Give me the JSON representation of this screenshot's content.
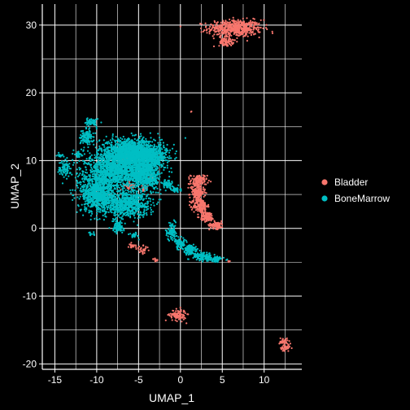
{
  "chart_data": {
    "type": "scatter",
    "xlabel": "UMAP_1",
    "ylabel": "UMAP_2",
    "xlim": [
      -16.5,
      14.5
    ],
    "ylim": [
      -20.8,
      33.1
    ],
    "x_ticks": [
      -15,
      -10,
      -5,
      0,
      5,
      10
    ],
    "y_ticks": [
      -20,
      -10,
      0,
      10,
      20,
      30
    ],
    "grid_x": [
      -15,
      -12.5,
      -10,
      -7.5,
      -5,
      -2.5,
      0,
      2.5,
      5,
      7.5,
      10,
      12.5
    ],
    "grid_y": [
      -20,
      -15,
      -10,
      -5,
      0,
      5,
      10,
      15,
      20,
      25,
      30
    ],
    "grid": true,
    "legend_position": "right",
    "background": "#000000",
    "series": [
      {
        "name": "Bladder",
        "color": "#F8766D",
        "clusters": [
          {
            "cx": 6.5,
            "cy": 29.5,
            "sx": 2.3,
            "sy": 0.9,
            "n": 520
          },
          {
            "cx": 5.5,
            "cy": 27.6,
            "sx": 0.6,
            "sy": 0.5,
            "n": 80
          },
          {
            "cx": 2.2,
            "cy": 7.0,
            "sx": 0.7,
            "sy": 0.7,
            "n": 120
          },
          {
            "cx": 2.0,
            "cy": 5.3,
            "sx": 0.6,
            "sy": 1.0,
            "n": 160
          },
          {
            "cx": 2.4,
            "cy": 3.3,
            "sx": 0.6,
            "sy": 0.8,
            "n": 140
          },
          {
            "cx": 3.2,
            "cy": 1.7,
            "sx": 0.6,
            "sy": 0.5,
            "n": 110
          },
          {
            "cx": 4.3,
            "cy": 0.5,
            "sx": 0.6,
            "sy": 0.4,
            "n": 90
          },
          {
            "cx": -6.5,
            "cy": 10.5,
            "sx": 0.4,
            "sy": 0.5,
            "n": 40
          },
          {
            "cx": -6.0,
            "cy": 6.3,
            "sx": 0.5,
            "sy": 0.4,
            "n": 40
          },
          {
            "cx": -4.3,
            "cy": 6.0,
            "sx": 0.3,
            "sy": 0.3,
            "n": 25
          },
          {
            "cx": -3.5,
            "cy": 7.5,
            "sx": 0.3,
            "sy": 0.3,
            "n": 12
          },
          {
            "cx": -5.8,
            "cy": -2.5,
            "sx": 0.3,
            "sy": 0.3,
            "n": 20
          },
          {
            "cx": -4.5,
            "cy": -3.2,
            "sx": 0.5,
            "sy": 0.4,
            "n": 30
          },
          {
            "cx": -3.0,
            "cy": -4.6,
            "sx": 0.3,
            "sy": 0.2,
            "n": 12
          },
          {
            "cx": 1.3,
            "cy": 17.2,
            "sx": 0.05,
            "sy": 0.05,
            "n": 2
          },
          {
            "cx": 5.8,
            "cy": -4.8,
            "sx": 0.1,
            "sy": 0.1,
            "n": 4
          },
          {
            "cx": -0.3,
            "cy": -12.8,
            "sx": 0.7,
            "sy": 0.6,
            "n": 110
          },
          {
            "cx": 12.3,
            "cy": -16.6,
            "sx": 0.35,
            "sy": 0.4,
            "n": 30
          },
          {
            "cx": 12.6,
            "cy": -17.7,
            "sx": 0.5,
            "sy": 0.4,
            "n": 40
          }
        ]
      },
      {
        "name": "BoneMarrow",
        "color": "#00BFC4",
        "clusters": [
          {
            "cx": -6.0,
            "cy": 11.2,
            "sx": 2.6,
            "sy": 1.4,
            "n": 1400
          },
          {
            "cx": -7.5,
            "cy": 8.5,
            "sx": 2.6,
            "sy": 1.8,
            "n": 1300
          },
          {
            "cx": -9.8,
            "cy": 5.2,
            "sx": 1.5,
            "sy": 2.0,
            "n": 800
          },
          {
            "cx": -6.5,
            "cy": 3.6,
            "sx": 2.0,
            "sy": 1.3,
            "n": 700
          },
          {
            "cx": -4.0,
            "cy": 7.8,
            "sx": 1.2,
            "sy": 1.6,
            "n": 500
          },
          {
            "cx": -3.5,
            "cy": 10.5,
            "sx": 1.3,
            "sy": 1.1,
            "n": 400
          },
          {
            "cx": -11.2,
            "cy": 13.5,
            "sx": 0.6,
            "sy": 0.9,
            "n": 120
          },
          {
            "cx": -10.6,
            "cy": 15.6,
            "sx": 0.5,
            "sy": 0.4,
            "n": 60
          },
          {
            "cx": -13.8,
            "cy": 9.0,
            "sx": 0.5,
            "sy": 0.9,
            "n": 80
          },
          {
            "cx": -14.3,
            "cy": 10.8,
            "sx": 0.3,
            "sy": 0.3,
            "n": 15
          },
          {
            "cx": -12.2,
            "cy": 11.0,
            "sx": 0.3,
            "sy": 0.4,
            "n": 25
          },
          {
            "cx": -1.5,
            "cy": 6.5,
            "sx": 0.4,
            "sy": 0.4,
            "n": 60
          },
          {
            "cx": -0.5,
            "cy": 5.7,
            "sx": 0.4,
            "sy": 0.3,
            "n": 40
          },
          {
            "cx": -7.5,
            "cy": 0.3,
            "sx": 0.5,
            "sy": 0.7,
            "n": 80
          },
          {
            "cx": -5.5,
            "cy": -1.0,
            "sx": 0.4,
            "sy": 0.3,
            "n": 20
          },
          {
            "cx": -10.5,
            "cy": -0.8,
            "sx": 0.3,
            "sy": 0.3,
            "n": 12
          },
          {
            "cx": -1.0,
            "cy": -0.5,
            "sx": 0.4,
            "sy": 0.9,
            "n": 100
          },
          {
            "cx": 0.0,
            "cy": -2.2,
            "sx": 0.5,
            "sy": 0.6,
            "n": 100
          },
          {
            "cx": 1.2,
            "cy": -3.2,
            "sx": 0.6,
            "sy": 0.5,
            "n": 120
          },
          {
            "cx": 2.7,
            "cy": -4.1,
            "sx": 0.8,
            "sy": 0.4,
            "n": 120
          },
          {
            "cx": 4.3,
            "cy": -4.6,
            "sx": 0.6,
            "sy": 0.3,
            "n": 60
          }
        ]
      }
    ]
  }
}
